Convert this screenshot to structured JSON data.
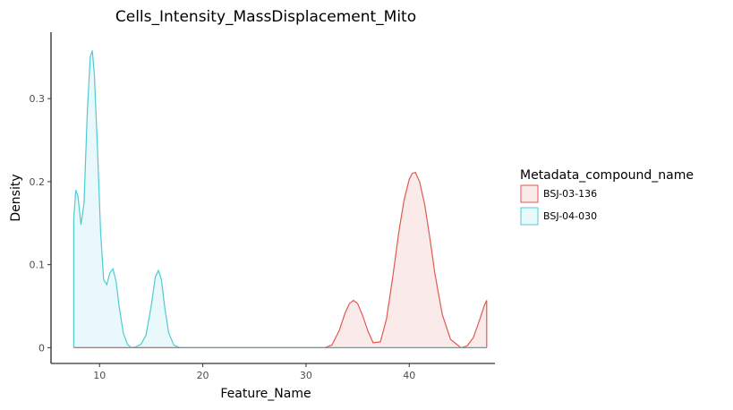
{
  "chart_data": {
    "type": "area",
    "title": "Cells_Intensity_MassDisplacement_Mito",
    "xlabel": "Feature_Name",
    "ylabel": "Density",
    "xlim": [
      5.3,
      48.3
    ],
    "ylim": [
      -0.019,
      0.38
    ],
    "x_ticks": [
      10,
      20,
      30,
      40
    ],
    "y_ticks": [
      0,
      0.1,
      0.2,
      0.3
    ],
    "x_tick_labels": [
      "10",
      "20",
      "30",
      "40"
    ],
    "y_tick_labels": [
      "0",
      "0.1",
      "0.2",
      "0.3"
    ],
    "grid": false,
    "legend": {
      "title": "Metadata_compound_name",
      "position": "right"
    },
    "series": [
      {
        "name": "BSJ-03-136",
        "color": "#e05a50",
        "fill": "#fbeaea",
        "x": [
          7.5,
          31.8,
          32.5,
          33.2,
          33.8,
          34.2,
          34.6,
          35.0,
          35.5,
          36.0,
          36.5,
          37.2,
          37.8,
          38.4,
          39.0,
          39.5,
          40.0,
          40.3,
          40.6,
          41.0,
          41.5,
          42.0,
          42.5,
          43.2,
          44.0,
          45.0,
          45.6,
          46.2,
          46.8,
          47.3,
          47.5
        ],
        "y": [
          0,
          0,
          0.003,
          0.02,
          0.042,
          0.053,
          0.057,
          0.053,
          0.038,
          0.02,
          0.006,
          0.007,
          0.035,
          0.085,
          0.14,
          0.178,
          0.203,
          0.21,
          0.211,
          0.2,
          0.172,
          0.132,
          0.088,
          0.04,
          0.01,
          0,
          0.002,
          0.012,
          0.033,
          0.052,
          0.057
        ]
      },
      {
        "name": "BSJ-04-030",
        "color": "#4fcbd3",
        "fill": "#e9f8fa",
        "x": [
          7.5,
          7.7,
          7.9,
          8.2,
          8.5,
          8.8,
          9.1,
          9.3,
          9.5,
          9.8,
          10.1,
          10.4,
          10.7,
          11.0,
          11.3,
          11.6,
          11.9,
          12.3,
          12.7,
          13.1,
          13.5,
          14.0,
          14.5,
          15.0,
          15.4,
          15.7,
          16.0,
          16.3,
          16.7,
          17.2,
          17.8,
          18.5,
          47.5
        ],
        "y": [
          0.155,
          0.19,
          0.183,
          0.148,
          0.175,
          0.28,
          0.35,
          0.358,
          0.33,
          0.24,
          0.14,
          0.082,
          0.076,
          0.09,
          0.095,
          0.08,
          0.05,
          0.018,
          0.004,
          0,
          0.001,
          0.004,
          0.015,
          0.05,
          0.085,
          0.093,
          0.082,
          0.05,
          0.018,
          0.003,
          0,
          0,
          0
        ]
      }
    ]
  }
}
